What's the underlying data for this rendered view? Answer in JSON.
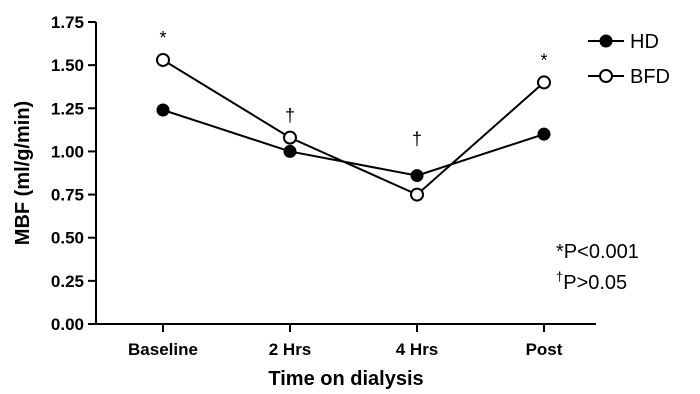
{
  "chart_data": {
    "type": "line",
    "categories": [
      "Baseline",
      "2 Hrs",
      "4 Hrs",
      "Post"
    ],
    "series": [
      {
        "name": "HD",
        "marker": "filled-circle",
        "values": [
          1.24,
          1.0,
          0.86,
          1.1
        ]
      },
      {
        "name": "BFD",
        "marker": "open-circle",
        "values": [
          1.53,
          1.08,
          0.75,
          1.4
        ]
      }
    ],
    "xlabel": "Time on dialysis",
    "ylabel": "MBF (ml/g/min)",
    "ylim": [
      0,
      1.75
    ],
    "yticks": [
      "0.00",
      "0.25",
      "0.50",
      "0.75",
      "1.00",
      "1.25",
      "1.50",
      "1.75"
    ],
    "grid": false,
    "legend_position": "top-right",
    "significance_marks": [
      "*",
      "†",
      "†",
      "*"
    ],
    "annotations": [
      {
        "symbol": "*",
        "text": "P<0.001"
      },
      {
        "symbol": "†",
        "text": "P>0.05"
      }
    ],
    "colors": {
      "line": "#000000",
      "background": "#ffffff"
    }
  }
}
